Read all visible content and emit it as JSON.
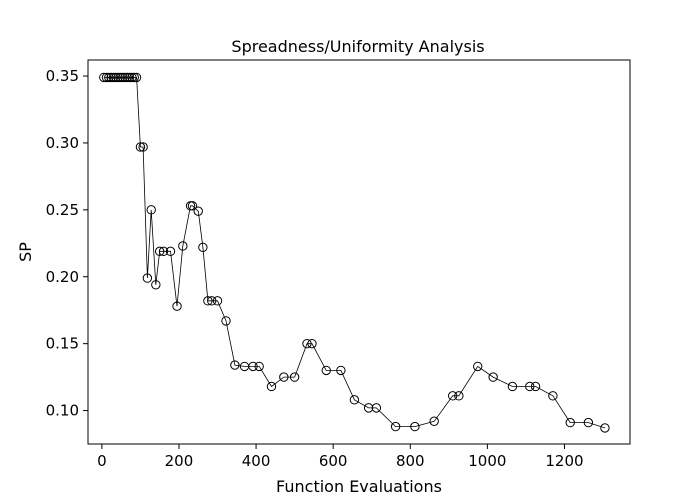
{
  "chart_data": {
    "type": "line",
    "title": "Spreadness/Uniformity Analysis",
    "xlabel": "Function Evaluations",
    "ylabel": "SP",
    "xlim": [
      -36,
      1370
    ],
    "ylim": [
      0.075,
      0.362
    ],
    "xticks": [
      0,
      200,
      400,
      600,
      800,
      1000,
      1200
    ],
    "yticks": [
      0.1,
      0.15,
      0.2,
      0.25,
      0.3,
      0.35
    ],
    "xtick_labels": [
      "0",
      "200",
      "400",
      "600",
      "800",
      "1000",
      "1200"
    ],
    "ytick_labels": [
      "0.10",
      "0.15",
      "0.20",
      "0.25",
      "0.30",
      "0.35"
    ],
    "grid": false,
    "series": [
      {
        "marker": "open-circle",
        "x": [
          5,
          12,
          18,
          24,
          30,
          36,
          42,
          48,
          54,
          60,
          66,
          72,
          78,
          84,
          90,
          100,
          107,
          118,
          128,
          140,
          150,
          160,
          178,
          195,
          210,
          230,
          235,
          250,
          262,
          275,
          285,
          300,
          322,
          345,
          370,
          392,
          408,
          440,
          472,
          500,
          532,
          545,
          582,
          620,
          655,
          692,
          712,
          762,
          812,
          862,
          910,
          926,
          975,
          1015,
          1065,
          1110,
          1125,
          1170,
          1215,
          1262,
          1305
        ],
        "y": [
          0.349,
          0.349,
          0.349,
          0.349,
          0.349,
          0.349,
          0.349,
          0.349,
          0.349,
          0.349,
          0.349,
          0.349,
          0.349,
          0.349,
          0.349,
          0.297,
          0.297,
          0.199,
          0.25,
          0.194,
          0.219,
          0.219,
          0.219,
          0.178,
          0.223,
          0.253,
          0.253,
          0.249,
          0.222,
          0.182,
          0.182,
          0.182,
          0.167,
          0.134,
          0.133,
          0.133,
          0.133,
          0.118,
          0.125,
          0.125,
          0.15,
          0.15,
          0.13,
          0.13,
          0.108,
          0.102,
          0.102,
          0.088,
          0.088,
          0.092,
          0.111,
          0.111,
          0.133,
          0.125,
          0.118,
          0.118,
          0.118,
          0.111,
          0.091,
          0.091,
          0.087
        ]
      }
    ]
  }
}
